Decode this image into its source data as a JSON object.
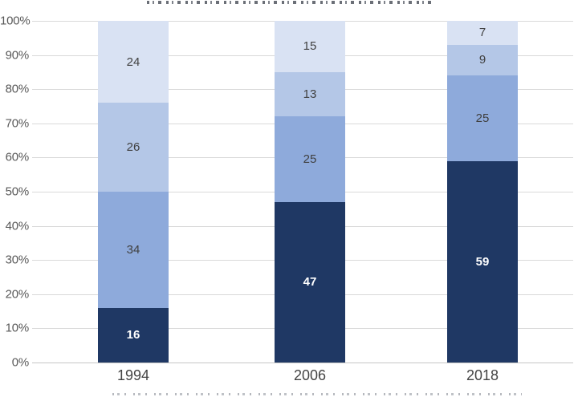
{
  "chart_data": {
    "type": "bar",
    "variant": "stacked-100-percent",
    "title": "cropped-offscreen-top",
    "legend": "cropped-offscreen-bottom",
    "grid": true,
    "ylim": [
      0,
      100
    ],
    "y_ticks": [
      "100%",
      "90%",
      "80%",
      "70%",
      "60%",
      "50%",
      "40%",
      "30%",
      "20%",
      "10%",
      "0%"
    ],
    "categories": [
      "1994",
      "2006",
      "2018"
    ],
    "series": [
      {
        "stack_position": "bottom",
        "color": "#1F3864",
        "label_color": "#FFFFFF",
        "values": [
          16,
          47,
          59
        ]
      },
      {
        "stack_position": "second",
        "color": "#8EAADB",
        "label_color": "#404040",
        "values": [
          34,
          25,
          25
        ]
      },
      {
        "stack_position": "third",
        "color": "#B4C7E7",
        "label_color": "#404040",
        "values": [
          26,
          13,
          9
        ]
      },
      {
        "stack_position": "top",
        "color": "#D9E2F3",
        "label_color": "#404040",
        "values": [
          24,
          15,
          7
        ]
      }
    ],
    "colors": {
      "background": "#FFFFFF",
      "gridline": "#D9D9D9",
      "axis_tick_label": "#595959",
      "category_label": "#444444"
    }
  }
}
